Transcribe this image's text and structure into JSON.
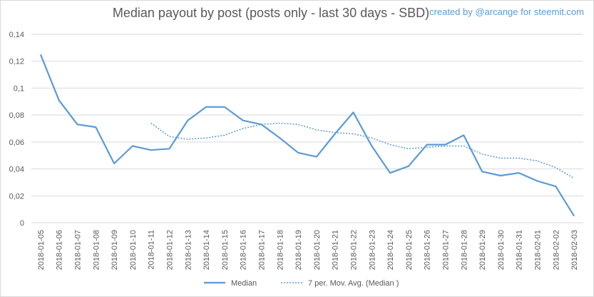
{
  "chart_data": {
    "type": "line",
    "title": "Median payout by post (posts only - last 30 days - SBD)",
    "credit": "created by @arcange for steemit.com",
    "categories": [
      "2018-01-05",
      "2018-01-06",
      "2018-01-07",
      "2018-01-08",
      "2018-01-09",
      "2018-01-10",
      "2018-01-11",
      "2018-01-12",
      "2018-01-13",
      "2018-01-14",
      "2018-01-15",
      "2018-01-16",
      "2018-01-17",
      "2018-01-18",
      "2018-01-19",
      "2018-01-20",
      "2018-01-21",
      "2018-01-22",
      "2018-01-23",
      "2018-01-24",
      "2018-01-25",
      "2018-01-26",
      "2018-01-27",
      "2018-01-28",
      "2018-01-29",
      "2018-01-30",
      "2018-01-31",
      "2018-02-01",
      "2018-02-02",
      "2018-02-03"
    ],
    "ylim": [
      0,
      0.14
    ],
    "y_ticks": [
      "0",
      "0,02",
      "0,04",
      "0,06",
      "0,08",
      "0,1",
      "0,12",
      "0,14"
    ],
    "grid": true,
    "legend_position": "bottom",
    "series": [
      {
        "name": "Median",
        "style": "solid",
        "color": "#5b9bd5",
        "values": [
          0.125,
          0.091,
          0.073,
          0.071,
          0.044,
          0.057,
          0.054,
          0.055,
          0.076,
          0.086,
          0.086,
          0.076,
          0.073,
          0.063,
          0.052,
          0.049,
          0.066,
          0.082,
          0.057,
          0.037,
          0.042,
          0.058,
          0.058,
          0.065,
          0.038,
          0.035,
          0.037,
          0.031,
          0.027,
          0.005
        ]
      },
      {
        "name": "7 per. Mov. Avg. (Median )",
        "style": "dotted",
        "color": "#5b9bd5",
        "values": [
          null,
          null,
          null,
          null,
          null,
          null,
          0.074,
          0.064,
          0.062,
          0.063,
          0.065,
          0.07,
          0.073,
          0.074,
          0.073,
          0.069,
          0.067,
          0.066,
          0.063,
          0.058,
          0.055,
          0.056,
          0.057,
          0.057,
          0.051,
          0.048,
          0.048,
          0.046,
          0.041,
          0.033
        ]
      }
    ]
  }
}
